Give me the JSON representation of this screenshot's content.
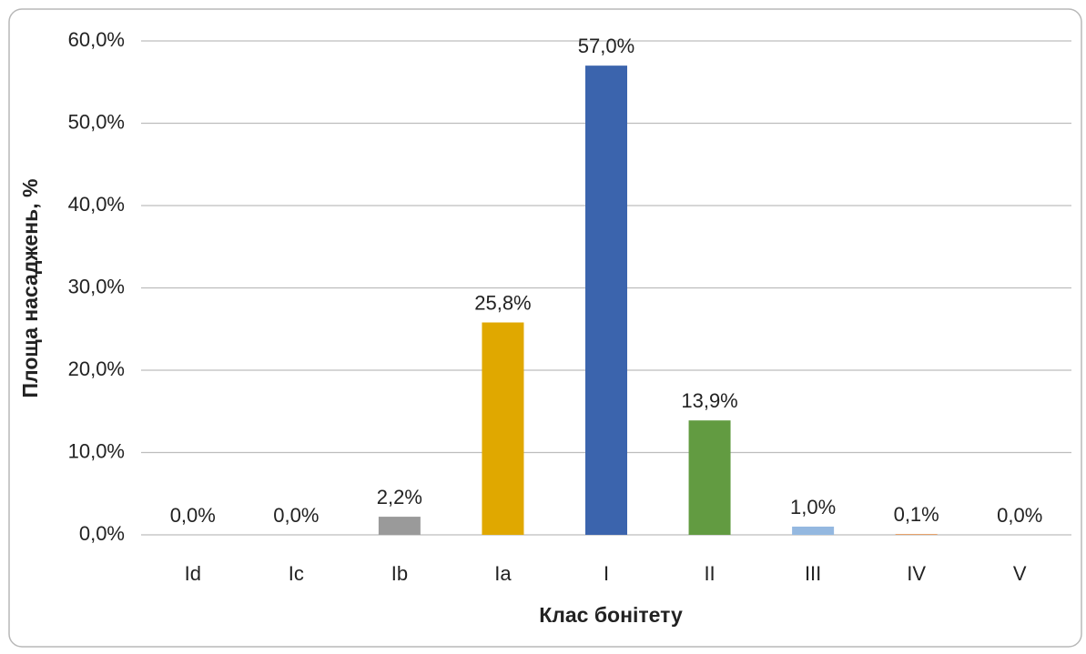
{
  "chart_data": {
    "type": "bar",
    "x_label": "Клас бонітету",
    "y_label": "Площа насаджень, %",
    "categories": [
      "Id",
      "Ic",
      "Ib",
      "Ia",
      "I",
      "II",
      "III",
      "IV",
      "V"
    ],
    "values": [
      0,
      0,
      2.2,
      25.8,
      57.0,
      13.9,
      1.0,
      0.1,
      0.0
    ],
    "value_labels": [
      "0,0%",
      "0,0%",
      "2,2%",
      "25,8%",
      "57,0%",
      "13,9%",
      "1,0%",
      "0,1%",
      "0,0%"
    ],
    "colors": [
      "#3a6fb0",
      "#d9741f",
      "#9a9a9a",
      "#e0a800",
      "#3b64ad",
      "#629b41",
      "#94b8e0",
      "#e59a5c",
      "#c0c0c0"
    ],
    "ylim": [
      0,
      60
    ],
    "yticks": [
      {
        "value": 0,
        "label": "0,0%"
      },
      {
        "value": 10,
        "label": "10,0%"
      },
      {
        "value": 20,
        "label": "20,0%"
      },
      {
        "value": 30,
        "label": "30,0%"
      },
      {
        "value": 40,
        "label": "40,0%"
      },
      {
        "value": 50,
        "label": "50,0%"
      },
      {
        "value": 60,
        "label": "60,0%"
      }
    ],
    "grid": true
  }
}
